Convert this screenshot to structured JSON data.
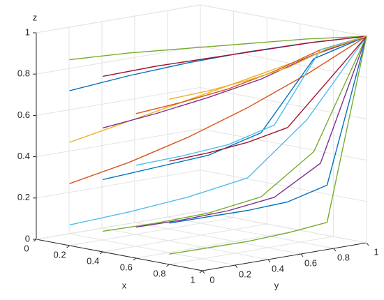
{
  "chart_data": {
    "type": "line3d",
    "xlabel": "x",
    "ylabel": "y",
    "zlabel": "z",
    "xlim": [
      0,
      1
    ],
    "ylim": [
      0,
      1
    ],
    "zlim": [
      0,
      1
    ],
    "xticks": [
      0,
      0.2,
      0.4,
      0.6,
      0.8,
      1
    ],
    "yticks": [
      0,
      0.2,
      0.4,
      0.6,
      0.8,
      1
    ],
    "zticks": [
      0,
      0.2,
      0.4,
      0.6,
      0.8,
      1
    ],
    "grid": true,
    "series": [
      {
        "color": "#77AC30",
        "x": [
          0.2,
          0.36,
          0.52,
          0.68,
          0.84,
          1
        ],
        "y": [
          0,
          0.2,
          0.4,
          0.6,
          0.8,
          1
        ],
        "z": [
          0.9,
          0.93,
          0.95,
          0.97,
          0.99,
          1
        ]
      },
      {
        "color": "#0072BD",
        "x": [
          0.2,
          0.36,
          0.52,
          0.68,
          0.84,
          1
        ],
        "y": [
          0,
          0.2,
          0.4,
          0.6,
          0.8,
          1
        ],
        "z": [
          0.75,
          0.82,
          0.88,
          0.93,
          0.97,
          1
        ]
      },
      {
        "color": "#EDB120",
        "x": [
          0.2,
          0.36,
          0.52,
          0.68,
          0.84,
          1
        ],
        "y": [
          0,
          0.2,
          0.4,
          0.6,
          0.8,
          1
        ],
        "z": [
          0.5,
          0.6,
          0.7,
          0.8,
          0.9,
          1
        ]
      },
      {
        "color": "#D95319",
        "x": [
          0.2,
          0.36,
          0.52,
          0.68,
          0.84,
          1
        ],
        "y": [
          0,
          0.2,
          0.4,
          0.6,
          0.8,
          1
        ],
        "z": [
          0.3,
          0.4,
          0.52,
          0.66,
          0.82,
          1
        ]
      },
      {
        "color": "#4DBEEE",
        "x": [
          0.2,
          0.36,
          0.52,
          0.68,
          0.84,
          1
        ],
        "y": [
          0,
          0.2,
          0.4,
          0.6,
          0.8,
          1
        ],
        "z": [
          0.1,
          0.16,
          0.23,
          0.32,
          0.6,
          1
        ]
      },
      {
        "color": "#A2142F",
        "x": [
          0.4,
          0.52,
          0.64,
          0.76,
          0.88,
          1
        ],
        "y": [
          0,
          0.2,
          0.4,
          0.6,
          0.8,
          1
        ],
        "z": [
          0.85,
          0.89,
          0.92,
          0.95,
          0.98,
          1
        ]
      },
      {
        "color": "#7E2F8E",
        "x": [
          0.4,
          0.52,
          0.64,
          0.76,
          0.88,
          1
        ],
        "y": [
          0,
          0.2,
          0.4,
          0.6,
          0.8,
          1
        ],
        "z": [
          0.6,
          0.66,
          0.73,
          0.81,
          0.92,
          1
        ]
      },
      {
        "color": "#0072BD",
        "x": [
          0.4,
          0.52,
          0.64,
          0.76,
          0.88,
          1
        ],
        "y": [
          0,
          0.2,
          0.4,
          0.6,
          0.8,
          1
        ],
        "z": [
          0.35,
          0.4,
          0.45,
          0.55,
          0.9,
          1
        ]
      },
      {
        "color": "#77AC30",
        "x": [
          0.4,
          0.52,
          0.64,
          0.76,
          0.88,
          1
        ],
        "y": [
          0,
          0.2,
          0.4,
          0.6,
          0.8,
          1
        ],
        "z": [
          0.1,
          0.13,
          0.17,
          0.24,
          0.45,
          1
        ]
      },
      {
        "color": "#D95319",
        "x": [
          0.6,
          0.68,
          0.76,
          0.84,
          0.92,
          1
        ],
        "y": [
          0,
          0.2,
          0.4,
          0.6,
          0.8,
          1
        ],
        "z": [
          0.7,
          0.74,
          0.79,
          0.86,
          0.95,
          1
        ]
      },
      {
        "color": "#4DBEEE",
        "x": [
          0.6,
          0.68,
          0.76,
          0.84,
          0.92,
          1
        ],
        "y": [
          0,
          0.2,
          0.4,
          0.6,
          0.8,
          1
        ],
        "z": [
          0.45,
          0.48,
          0.52,
          0.6,
          0.95,
          1
        ]
      },
      {
        "color": "#7E2F8E",
        "x": [
          0.6,
          0.68,
          0.76,
          0.84,
          0.92,
          1
        ],
        "y": [
          0,
          0.2,
          0.4,
          0.6,
          0.8,
          1
        ],
        "z": [
          0.15,
          0.17,
          0.2,
          0.25,
          0.4,
          1
        ]
      },
      {
        "color": "#EDB120",
        "x": [
          0.8,
          0.84,
          0.88,
          0.92,
          0.96,
          1
        ],
        "y": [
          0,
          0.2,
          0.4,
          0.6,
          0.8,
          1
        ],
        "z": [
          0.8,
          0.82,
          0.85,
          0.89,
          0.96,
          1
        ]
      },
      {
        "color": "#A2142F",
        "x": [
          0.8,
          0.84,
          0.88,
          0.92,
          0.96,
          1
        ],
        "y": [
          0,
          0.2,
          0.4,
          0.6,
          0.8,
          1
        ],
        "z": [
          0.5,
          0.52,
          0.55,
          0.6,
          0.8,
          1
        ]
      },
      {
        "color": "#0072BD",
        "x": [
          0.8,
          0.84,
          0.88,
          0.92,
          0.96,
          1
        ],
        "y": [
          0,
          0.2,
          0.4,
          0.6,
          0.8,
          1
        ],
        "z": [
          0.2,
          0.21,
          0.22,
          0.24,
          0.3,
          1
        ]
      },
      {
        "color": "#77AC30",
        "x": [
          0.8,
          0.84,
          0.88,
          0.92,
          0.96,
          1
        ],
        "y": [
          0,
          0.2,
          0.4,
          0.6,
          0.8,
          1
        ],
        "z": [
          0.05,
          0.06,
          0.07,
          0.09,
          0.12,
          1
        ]
      }
    ]
  }
}
